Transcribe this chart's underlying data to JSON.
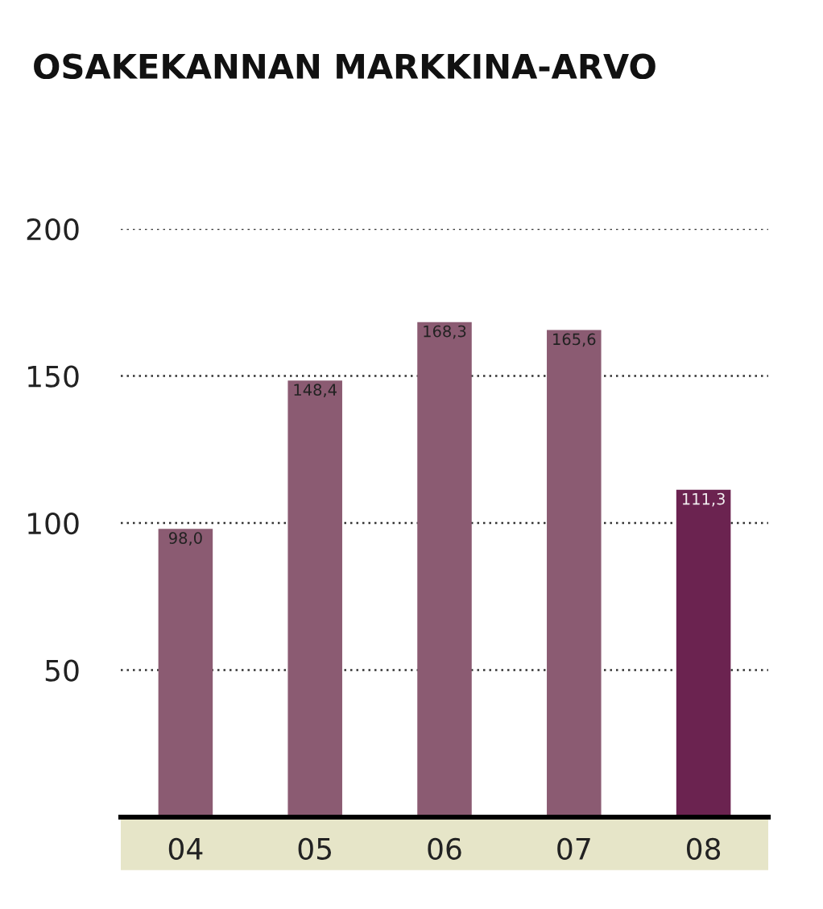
{
  "chart_data": {
    "type": "bar",
    "title": "OSAKEKANNAN MARKKINA-ARVO",
    "categories": [
      "04",
      "05",
      "06",
      "07",
      "08"
    ],
    "values": [
      98.0,
      148.4,
      168.3,
      165.6,
      111.3
    ],
    "value_labels": [
      "98,0",
      "148,4",
      "168,3",
      "165,6",
      "111,3"
    ],
    "colors": [
      "#8b5b72",
      "#8b5b72",
      "#8b5b72",
      "#8b5b72",
      "#6b2350"
    ],
    "ylim": [
      0,
      200
    ],
    "yticks": [
      50,
      100,
      150,
      200
    ],
    "grid": "y"
  }
}
